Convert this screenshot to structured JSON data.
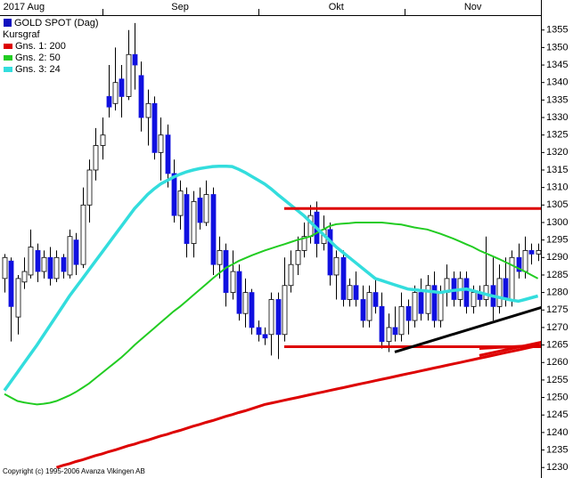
{
  "chart_data": {
    "type": "candlestick",
    "legend_title": "GOLD SPOT (Dag)",
    "legend_subtitle": "Kursgraf",
    "footer": "Copyright (c) 1995-2006 Avanza Vikingen AB",
    "categories": [
      null,
      null,
      null,
      "2017 Aug",
      null,
      null,
      null,
      null,
      null,
      null,
      null,
      null,
      null,
      null,
      null,
      null,
      null,
      null,
      null,
      null,
      null,
      null,
      null,
      null,
      null,
      null,
      null,
      "Sep",
      null,
      null,
      null,
      null,
      null,
      null,
      null,
      null,
      null,
      null,
      null,
      null,
      null,
      null,
      null,
      null,
      null,
      null,
      null,
      null,
      null,
      null,
      null,
      "Okt",
      null,
      null,
      null,
      null,
      null,
      null,
      null,
      null,
      null,
      null,
      null,
      null,
      null,
      null,
      null,
      null,
      null,
      null,
      null,
      null,
      "Nov",
      null,
      null,
      null,
      null,
      null,
      null,
      null,
      null,
      null,
      null
    ],
    "up_color": "#ffffff",
    "down_color": "#1010e0",
    "price_color": "#1010c0",
    "open": [
      1284,
      1289,
      1273,
      1283,
      1285,
      1292,
      1286,
      1290,
      1284,
      1290,
      1285,
      1295,
      1288,
      1305,
      1315,
      1322,
      1336,
      1334,
      1341,
      1336,
      1348,
      1342,
      1330,
      1334,
      1320,
      1325,
      1314,
      1302,
      1308,
      1294,
      1307,
      1300,
      1308,
      1288,
      1292,
      1280,
      1286,
      1274,
      1280,
      1270,
      1268,
      1268,
      1278,
      1268,
      1282,
      1288,
      1292,
      1296,
      1303,
      1294,
      1298,
      1285,
      1290,
      1278,
      1282,
      1278,
      1272,
      1280,
      1276,
      1266,
      1270,
      1268,
      1276,
      1272,
      1280,
      1274,
      1282,
      1272,
      1280,
      1284,
      1278,
      1284,
      1276,
      1280,
      1278,
      1282,
      1276,
      1284,
      1278,
      1290,
      1286,
      1292,
      1291
    ],
    "high": [
      1291,
      1290,
      1285,
      1290,
      1298,
      1294,
      1292,
      1293,
      1292,
      1291,
      1298,
      1297,
      1310,
      1318,
      1327,
      1330,
      1345,
      1350,
      1345,
      1355,
      1357,
      1346,
      1338,
      1336,
      1330,
      1328,
      1318,
      1312,
      1310,
      1309,
      1310,
      1312,
      1310,
      1296,
      1294,
      1292,
      1288,
      1284,
      1281,
      1272,
      1270,
      1280,
      1280,
      1290,
      1292,
      1296,
      1300,
      1305,
      1306,
      1302,
      1300,
      1292,
      1292,
      1284,
      1286,
      1282,
      1282,
      1284,
      1280,
      1274,
      1276,
      1280,
      1278,
      1282,
      1284,
      1285,
      1286,
      1282,
      1288,
      1286,
      1286,
      1286,
      1282,
      1282,
      1296,
      1290,
      1288,
      1290,
      1292,
      1294,
      1296,
      1294,
      1294
    ],
    "low": [
      1280,
      1266,
      1268,
      1281,
      1284,
      1283,
      1284,
      1282,
      1283,
      1284,
      1284,
      1285,
      1287,
      1300,
      1312,
      1318,
      1330,
      1332,
      1330,
      1335,
      1338,
      1326,
      1322,
      1318,
      1312,
      1310,
      1300,
      1298,
      1290,
      1290,
      1298,
      1299,
      1285,
      1284,
      1276,
      1278,
      1272,
      1270,
      1268,
      1266,
      1265,
      1262,
      1261,
      1266,
      1280,
      1285,
      1290,
      1294,
      1290,
      1292,
      1282,
      1278,
      1276,
      1276,
      1276,
      1270,
      1270,
      1274,
      1264,
      1263,
      1266,
      1266,
      1268,
      1270,
      1272,
      1272,
      1270,
      1270,
      1276,
      1276,
      1276,
      1274,
      1274,
      1276,
      1276,
      1272,
      1274,
      1276,
      1276,
      1284,
      1284,
      1288,
      1289
    ],
    "close": [
      1290,
      1276,
      1284,
      1286,
      1293,
      1286,
      1290,
      1284,
      1290,
      1286,
      1296,
      1288,
      1305,
      1315,
      1322,
      1325,
      1333,
      1340,
      1336,
      1348,
      1345,
      1330,
      1334,
      1320,
      1325,
      1314,
      1302,
      1309,
      1294,
      1306,
      1300,
      1308,
      1288,
      1292,
      1280,
      1286,
      1274,
      1280,
      1270,
      1268,
      1267,
      1278,
      1268,
      1282,
      1288,
      1292,
      1296,
      1302,
      1294,
      1298,
      1285,
      1290,
      1278,
      1282,
      1278,
      1272,
      1280,
      1276,
      1266,
      1270,
      1268,
      1276,
      1272,
      1280,
      1274,
      1282,
      1272,
      1280,
      1284,
      1278,
      1284,
      1276,
      1280,
      1278,
      1282,
      1276,
      1284,
      1278,
      1290,
      1286,
      1292,
      1291,
      1292
    ],
    "series": [
      {
        "name": "Gns. 1: 200",
        "color": "#dd0000",
        "width": 3,
        "values": [
          null,
          null,
          null,
          null,
          null,
          null,
          null,
          null,
          1230,
          1230.6,
          1231.1,
          1231.7,
          1232.2,
          1232.8,
          1233.4,
          1233.9,
          1234.5,
          1235,
          1235.6,
          1236.2,
          1236.7,
          1237.3,
          1237.8,
          1238.4,
          1239,
          1239.5,
          1240.1,
          1240.6,
          1241.2,
          1241.8,
          1242.3,
          1242.9,
          1243.4,
          1244,
          1244.6,
          1245.1,
          1245.7,
          1246.2,
          1246.8,
          1247.4,
          1248,
          1248.4,
          1248.8,
          1249.2,
          1249.6,
          1250,
          1250.4,
          1250.8,
          1251.2,
          1251.6,
          1252,
          1252.4,
          1252.8,
          1253.2,
          1253.6,
          1254,
          1254.4,
          1254.8,
          1255.2,
          1255.6,
          1256,
          1256.4,
          1256.8,
          1257.2,
          1257.6,
          1258,
          1258.4,
          1258.8,
          1259.2,
          1259.6,
          1260,
          1260.4,
          1260.8,
          1261.2,
          1261.6,
          1262,
          1262.4,
          1262.8,
          1263.2,
          1263.6,
          1264,
          1264.4,
          1264.8
        ]
      },
      {
        "name": "Gns. 2: 50",
        "color": "#22cc22",
        "width": 2,
        "values": [
          1251,
          1250,
          1249,
          1248.6,
          1248.3,
          1248,
          1248.2,
          1248.5,
          1249,
          1249.8,
          1250.6,
          1251.6,
          1252.8,
          1254,
          1255.5,
          1257,
          1258.5,
          1260,
          1261.5,
          1263.2,
          1265,
          1266.6,
          1268.2,
          1269.8,
          1271.4,
          1273,
          1274.6,
          1276,
          1277.6,
          1279.2,
          1280.8,
          1282.4,
          1284,
          1285.5,
          1287,
          1288,
          1289,
          1289.8,
          1290.6,
          1291.3,
          1292,
          1292.6,
          1293.2,
          1293.8,
          1294.4,
          1295,
          1295.5,
          1296,
          1297,
          1298,
          1299,
          1299.5,
          1299.7,
          1299.8,
          1300,
          1300,
          1300,
          1300,
          1300,
          1299.8,
          1299.6,
          1299.4,
          1299,
          1298.6,
          1298.3,
          1298,
          1297.4,
          1296.8,
          1296.1,
          1295.4,
          1294.6,
          1293.8,
          1293,
          1292,
          1291.2,
          1290.4,
          1289.6,
          1288.7,
          1287.8,
          1286.9,
          1286,
          1285,
          1284
        ]
      },
      {
        "name": "Gns. 3: 24",
        "color": "#33dddd",
        "width": 3.5,
        "values": [
          1252,
          1254.6,
          1257.2,
          1259.8,
          1262.4,
          1265,
          1267.8,
          1270.6,
          1273.4,
          1276.2,
          1279,
          1281.5,
          1284,
          1286.5,
          1289,
          1291.5,
          1294,
          1296.5,
          1299,
          1301.5,
          1304,
          1306,
          1308,
          1309.6,
          1311,
          1312,
          1313,
          1313.8,
          1314.5,
          1315,
          1315.4,
          1315.7,
          1316,
          1316.1,
          1316.1,
          1316,
          1315.2,
          1314.3,
          1313.2,
          1312.1,
          1311,
          1309.6,
          1308,
          1306.5,
          1305,
          1303.5,
          1302,
          1300.2,
          1298.4,
          1296.6,
          1294.8,
          1293,
          1291.5,
          1290,
          1288.5,
          1287,
          1285.5,
          1284,
          1283.4,
          1282.8,
          1282.2,
          1281.6,
          1281,
          1280.8,
          1280.6,
          1280.4,
          1280.2,
          1280,
          1280.3,
          1280.6,
          1280.8,
          1281,
          1280.5,
          1280,
          1279.5,
          1279,
          1278.6,
          1278.2,
          1277.8,
          1277.5,
          1278,
          1278.5,
          1279
        ]
      }
    ],
    "trend_lines": [
      {
        "color": "#dd0000",
        "from": {
          "index": 43,
          "value": 1304
        },
        "to": {
          "index": 83,
          "value": 1304
        }
      },
      {
        "color": "#dd0000",
        "from": {
          "index": 43,
          "value": 1264.5
        },
        "to": {
          "index": 83,
          "value": 1264.5
        }
      },
      {
        "color": "#000000",
        "from": {
          "index": 60,
          "value": 1263
        },
        "to": {
          "index": 83,
          "value": 1276
        }
      },
      {
        "color": "#dd0000",
        "from": {
          "index": 73,
          "value": 1262
        },
        "to": {
          "index": 83,
          "value": 1266
        }
      },
      {
        "color": "#dd0000",
        "from": {
          "index": 73,
          "value": 1264
        },
        "to": {
          "index": 83,
          "value": 1265
        }
      }
    ],
    "ylim": [
      1227,
      1359
    ],
    "yticks": [
      1230,
      1235,
      1240,
      1245,
      1250,
      1255,
      1260,
      1265,
      1270,
      1275,
      1280,
      1285,
      1290,
      1295,
      1300,
      1305,
      1310,
      1315,
      1320,
      1325,
      1330,
      1335,
      1340,
      1345,
      1350,
      1355
    ]
  }
}
